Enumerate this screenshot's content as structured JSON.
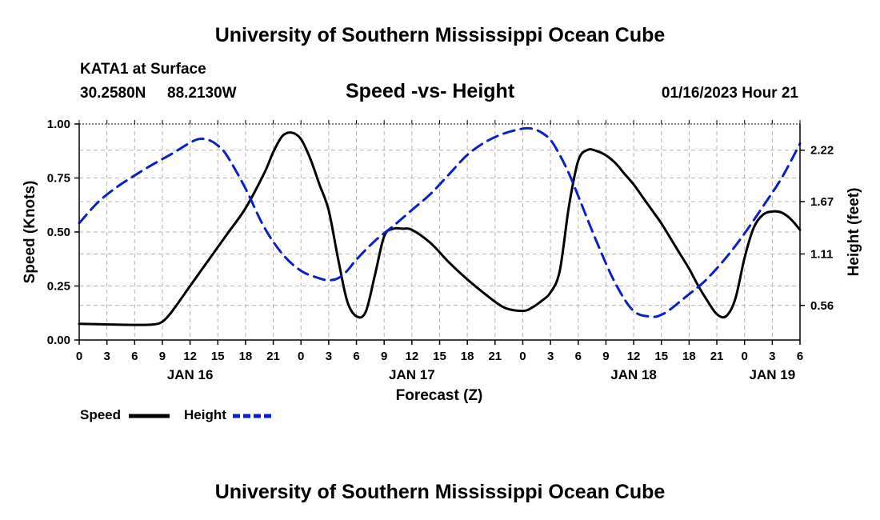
{
  "page": {
    "top_title": "University of Southern Mississippi Ocean Cube",
    "bottom_title": "University of Southern Mississippi Ocean Cube",
    "station": "KATA1 at Surface",
    "lat": "30.2580N",
    "lon": "88.2130W",
    "date": "01/16/2023 Hour 21"
  },
  "chart_data": {
    "type": "line",
    "title": "Speed -vs- Height",
    "xlabel": "Forecast (Z)",
    "ylabel": "Speed (Knots)",
    "y2label": "Height (feet)",
    "ylim": [
      0,
      1.0
    ],
    "y2lim": [
      0.19,
      2.5
    ],
    "xlim": [
      0,
      78
    ],
    "x_unit": "hours from Jan 16 00Z",
    "x_tick_labels": [
      "0",
      "3",
      "6",
      "9",
      "12",
      "15",
      "18",
      "21",
      "0",
      "3",
      "6",
      "9",
      "12",
      "15",
      "18",
      "21",
      "0",
      "3",
      "6",
      "9",
      "12",
      "15",
      "18",
      "21",
      "0",
      "3",
      "6"
    ],
    "date_labels": [
      {
        "x": 12,
        "label": "JAN 16"
      },
      {
        "x": 36,
        "label": "JAN 17"
      },
      {
        "x": 60,
        "label": "JAN 18"
      },
      {
        "x": 75,
        "label": "JAN 19"
      }
    ],
    "y_ticks": [
      0,
      0.25,
      0.5,
      0.75,
      1.0
    ],
    "y_tick_labels": [
      "0.00",
      "0.25",
      "0.50",
      "0.75",
      "1.00"
    ],
    "y2_ticks": [
      0.56,
      1.11,
      1.67,
      2.22
    ],
    "y2_tick_labels": [
      "0.56",
      "1.11",
      "1.67",
      "2.22"
    ],
    "series": [
      {
        "name": "Speed",
        "axis": "left",
        "color": "#000000",
        "dash": "solid",
        "x": [
          0,
          2,
          4,
          6,
          8,
          9,
          10,
          12,
          14,
          16,
          18,
          20,
          21,
          22,
          23,
          24,
          25,
          26,
          27,
          28,
          29,
          30,
          31,
          32,
          33,
          34,
          35,
          36,
          38,
          40,
          42,
          44,
          46,
          48,
          49,
          50,
          51,
          52,
          53,
          54,
          55,
          56,
          57,
          58,
          59,
          60,
          61,
          62,
          63,
          64,
          65,
          66,
          67,
          68,
          69,
          70,
          71,
          72,
          73,
          74,
          75,
          76,
          77,
          78
        ],
        "values": [
          0.075,
          0.073,
          0.071,
          0.07,
          0.072,
          0.085,
          0.13,
          0.25,
          0.37,
          0.49,
          0.61,
          0.77,
          0.87,
          0.945,
          0.96,
          0.93,
          0.84,
          0.72,
          0.6,
          0.38,
          0.18,
          0.11,
          0.13,
          0.3,
          0.48,
          0.515,
          0.515,
          0.51,
          0.45,
          0.36,
          0.28,
          0.21,
          0.15,
          0.135,
          0.15,
          0.18,
          0.22,
          0.32,
          0.62,
          0.83,
          0.88,
          0.875,
          0.855,
          0.82,
          0.77,
          0.72,
          0.66,
          0.6,
          0.54,
          0.47,
          0.4,
          0.33,
          0.25,
          0.18,
          0.12,
          0.11,
          0.19,
          0.38,
          0.52,
          0.58,
          0.595,
          0.59,
          0.56,
          0.51
        ]
      },
      {
        "name": "Height",
        "axis": "right",
        "color": "#0a20c8",
        "dash": "dashed",
        "x": [
          0,
          2,
          4,
          6,
          8,
          10,
          12,
          13,
          14,
          15,
          16,
          18,
          20,
          22,
          24,
          26,
          27,
          28,
          29,
          30,
          32,
          34,
          36,
          38,
          40,
          42,
          44,
          46,
          48,
          49,
          50,
          51,
          52,
          53,
          54,
          56,
          58,
          60,
          62,
          63,
          64,
          65,
          66,
          67,
          68,
          70,
          72,
          74,
          76,
          78
        ],
        "values": [
          1.44,
          1.66,
          1.82,
          1.95,
          2.07,
          2.18,
          2.3,
          2.34,
          2.33,
          2.27,
          2.16,
          1.81,
          1.4,
          1.11,
          0.93,
          0.85,
          0.83,
          0.85,
          0.93,
          1.05,
          1.25,
          1.41,
          1.58,
          1.75,
          1.96,
          2.17,
          2.31,
          2.4,
          2.45,
          2.45,
          2.41,
          2.33,
          2.17,
          1.97,
          1.73,
          1.24,
          0.8,
          0.5,
          0.44,
          0.46,
          0.52,
          0.6,
          0.68,
          0.76,
          0.85,
          1.07,
          1.33,
          1.62,
          1.92,
          2.29
        ]
      }
    ],
    "legend": [
      {
        "label": "Speed",
        "color": "#000000",
        "dash": "solid"
      },
      {
        "label": "Height",
        "color": "#0a20c8",
        "dash": "dashed"
      }
    ],
    "grid": true
  }
}
